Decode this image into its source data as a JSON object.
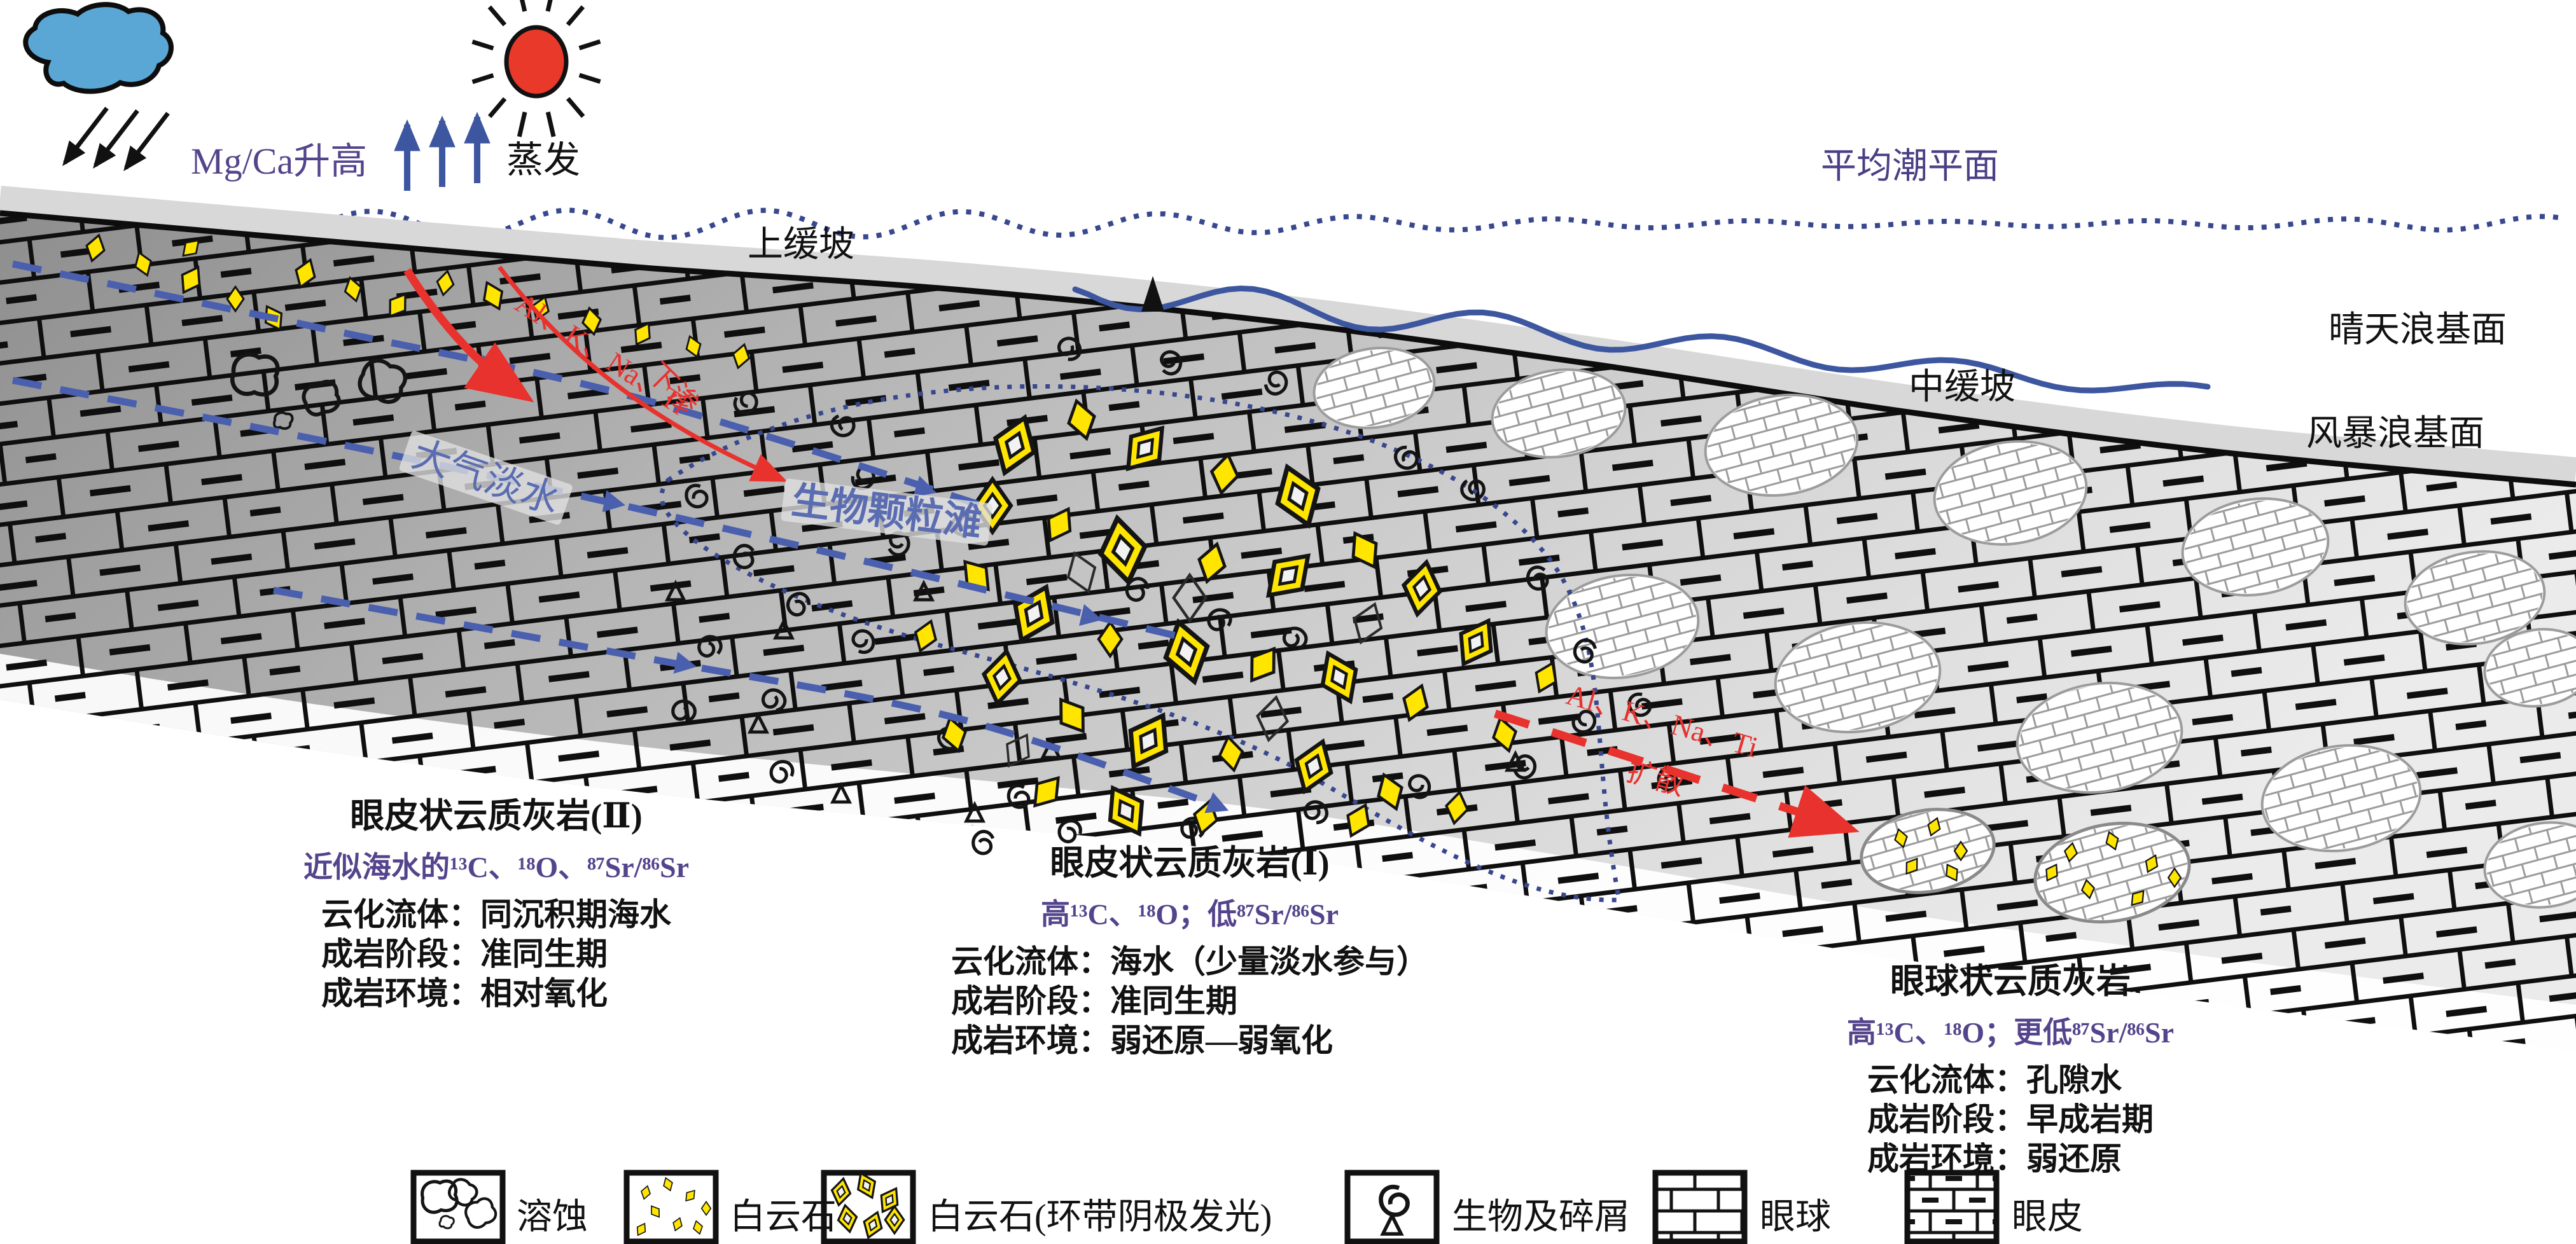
{
  "colors": {
    "accent_red": "#e8322e",
    "water_blue": "#4a5fae",
    "deep_dot_blue": "#39488e",
    "wave_blue": "#3d56a0",
    "dolomite_yellow": "#ffe500",
    "purple_text": "#54448c",
    "label_blue": "#5a6cb2",
    "cloud_blue": "#5aa7d6",
    "sun_red": "#e8392b",
    "rock_dark": "#8e8e8e",
    "rock_light": "#e9e9e9"
  },
  "sky": {
    "mgca": "Mg/Ca升高",
    "evaporation": "蒸发"
  },
  "water_levels": {
    "mean_tide": "平均潮平面",
    "fair_weather_wave_base": "晴天浪基面",
    "storm_wave_base": "风暴浪基面"
  },
  "ramp_zones": {
    "upper": "上缓坡",
    "middle": "中缓坡"
  },
  "features": {
    "grain_shoal": "生物颗粒滩",
    "meteoric_water": "大气淡水"
  },
  "processes": {
    "infiltration_elements": "Al、K、Na、Ti",
    "infiltration_action": "下渗",
    "diffusion_elements": "Al、K、Na、Ti",
    "diffusion_action": "扩散"
  },
  "rock_types": [
    {
      "title": "眼皮状云质灰岩(Ⅱ)",
      "isotopes": "近似海水的¹³C、¹⁸O、⁸⁷Sr/⁸⁶Sr",
      "fluid": "云化流体：同沉积期海水",
      "stage": "成岩阶段：准同生期",
      "environment": "成岩环境：相对氧化"
    },
    {
      "title": "眼皮状云质灰岩(Ⅰ)",
      "isotopes": "高¹³C、¹⁸O；低⁸⁷Sr/⁸⁶Sr",
      "fluid": "云化流体：海水（少量淡水参与）",
      "stage": "成岩阶段：准同生期",
      "environment": "成岩环境：弱还原—弱氧化"
    },
    {
      "title": "眼球状云质灰岩",
      "isotopes": "高¹³C、¹⁸O；更低⁸⁷Sr/⁸⁶Sr",
      "fluid": "云化流体：孔隙水",
      "stage": "成岩阶段：早成岩期",
      "environment": "成岩环境：弱还原"
    }
  ],
  "legend": {
    "items": [
      {
        "icon": "dissolution-icon",
        "label": "溶蚀"
      },
      {
        "icon": "dolomite-icon",
        "label": "白云石"
      },
      {
        "icon": "zoned-dolomite-icon",
        "label": "白云石(环带阴极发光)"
      },
      {
        "icon": "bioclast-icon",
        "label": "生物及碎屑"
      },
      {
        "icon": "eyeball-icon",
        "label": "眼球"
      },
      {
        "icon": "eyelid-icon",
        "label": "眼皮"
      }
    ]
  }
}
